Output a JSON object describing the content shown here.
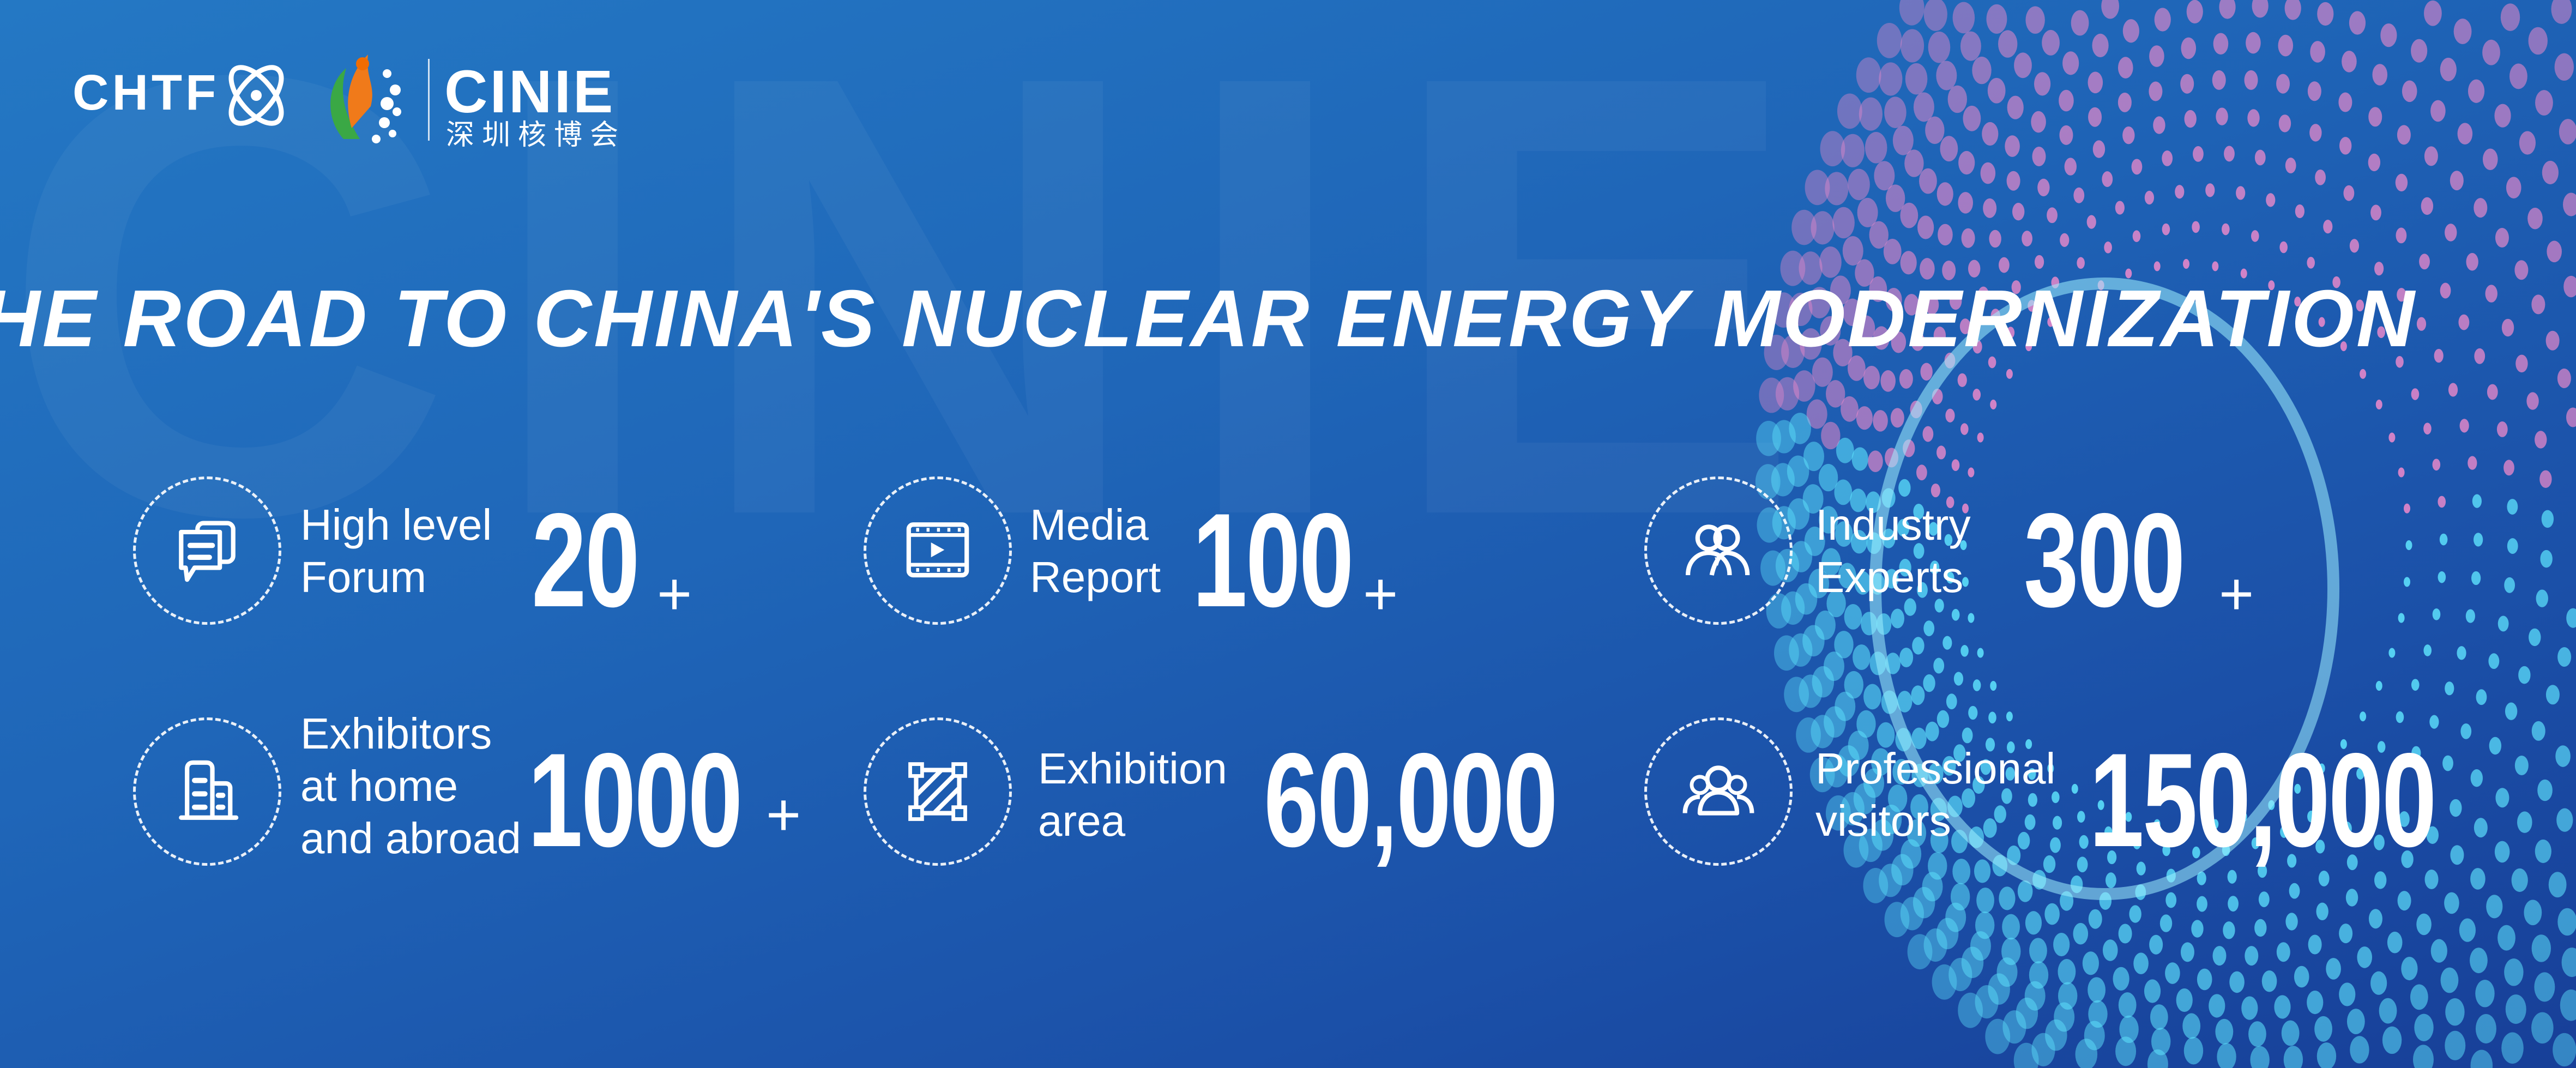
{
  "watermark": "CINIE",
  "logos": {
    "chtf": "CHTF",
    "cinie": "CINIE",
    "cinie_cn": "深圳核博会"
  },
  "title": "THE ROAD TO CHINA'S NUCLEAR ENERGY MODERNIZATION",
  "stats": [
    {
      "icon": "chat-bubbles-icon",
      "label_lines": [
        "High level",
        "Forum"
      ],
      "value": "20",
      "suffix": "+"
    },
    {
      "icon": "video-film-icon",
      "label_lines": [
        "Media",
        "Report"
      ],
      "value": "100",
      "suffix": "+"
    },
    {
      "icon": "users-group-icon",
      "label_lines": [
        "Industry",
        "Experts"
      ],
      "value": "300",
      "suffix": "+"
    },
    {
      "icon": "buildings-icon",
      "label_lines": [
        "Exhibitors",
        "at home",
        "and abroad"
      ],
      "value": "1000",
      "suffix": "+"
    },
    {
      "icon": "area-crop-icon",
      "label_lines": [
        "Exhibition",
        "area"
      ],
      "value": "60,000",
      "suffix": ""
    },
    {
      "icon": "visitors-group-icon",
      "label_lines": [
        "Professional",
        "visitors"
      ],
      "value": "150,000",
      "suffix": ""
    }
  ],
  "colors": {
    "background": "#1f66b8",
    "ring_cyan": "#5fe6ff",
    "ring_pink": "#f08acb"
  }
}
